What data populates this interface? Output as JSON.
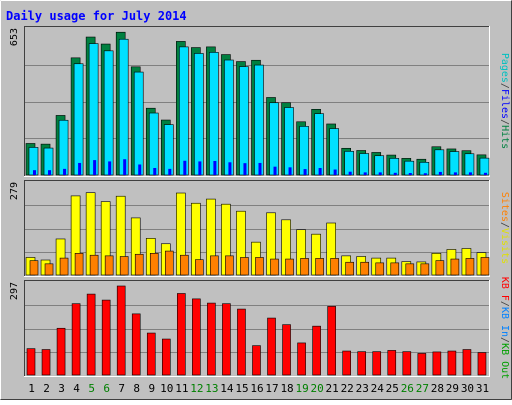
{
  "chart_data": {
    "type": "bar",
    "title": "Daily usage for July 2014",
    "categories": [
      "1",
      "2",
      "3",
      "4",
      "5",
      "6",
      "7",
      "8",
      "9",
      "10",
      "11",
      "12",
      "13",
      "14",
      "15",
      "16",
      "17",
      "18",
      "19",
      "20",
      "21",
      "22",
      "23",
      "24",
      "25",
      "26",
      "27",
      "28",
      "29",
      "30",
      "31"
    ],
    "weekend_days": [
      "5",
      "6",
      "12",
      "13",
      "19",
      "20",
      "26",
      "27"
    ],
    "panels": [
      {
        "name": "hits-files-pages",
        "ymax_label": "653",
        "ylim": [
          0,
          653
        ],
        "series": [
          {
            "name": "Hits",
            "color": "#008040",
            "values": [
              144,
              141,
              272,
              535,
              630,
              598,
              652,
              494,
              305,
              251,
              610,
              582,
              585,
              550,
              518,
              524,
              354,
              330,
              243,
              300,
              233,
              122,
              112,
              103,
              91,
              76,
              72,
              129,
              119,
              111,
              92
            ]
          },
          {
            "name": "Files",
            "color": "#00e0ff",
            "values": [
              126,
              123,
              250,
              508,
              600,
              567,
              620,
              470,
              283,
              230,
              585,
              555,
              560,
              525,
              495,
              502,
              330,
              308,
              222,
              280,
              212,
              108,
              98,
              88,
              76,
              63,
              58,
              115,
              107,
              97,
              77
            ]
          },
          {
            "name": "Pages",
            "color": "#0000ff",
            "values": [
              22,
              22,
              28,
              55,
              68,
              62,
              72,
              48,
              32,
              28,
              65,
              62,
              64,
              58,
              54,
              55,
              38,
              35,
              27,
              32,
              25,
              15,
              12,
              12,
              10,
              9,
              8,
              14,
              12,
              12,
              10
            ]
          }
        ]
      },
      {
        "name": "visits-sites",
        "ymax_label": "279",
        "ylim": [
          0,
          279
        ],
        "series": [
          {
            "name": "Visits",
            "color": "#ffff00",
            "values": [
              55,
              47,
              113,
              248,
              258,
              230,
              247,
              179,
              115,
              98,
              257,
              225,
              238,
              222,
              200,
              103,
              195,
              173,
              142,
              128,
              163,
              60,
              58,
              53,
              53,
              42,
              41,
              68,
              80,
              83,
              70
            ]
          },
          {
            "name": "Sites",
            "color": "#ff8000",
            "values": [
              45,
              35,
              53,
              68,
              62,
              60,
              58,
              65,
              68,
              75,
              62,
              48,
              60,
              60,
              55,
              55,
              50,
              50,
              52,
              52,
              52,
              40,
              40,
              38,
              38,
              35,
              35,
              45,
              50,
              52,
              55
            ]
          }
        ]
      },
      {
        "name": "kbytes",
        "ymax_label": "297",
        "ylim": [
          0,
          297
        ],
        "series": [
          {
            "name": "KBytes",
            "color": "#ff0000",
            "values": [
              88,
              85,
              156,
              238,
              270,
              250,
              297,
              204,
              140,
              120,
              272,
              254,
              240,
              238,
              220,
              98,
              190,
              168,
              107,
              163,
              229,
              80,
              78,
              78,
              82,
              78,
              72,
              77,
              80,
              85,
              75
            ]
          }
        ]
      }
    ],
    "legend_right": {
      "top": [
        {
          "text": "Pages",
          "color": "#00c0c0"
        },
        {
          "text": "/",
          "color": "#404040"
        },
        {
          "text": "Files",
          "color": "#0000ff"
        },
        {
          "text": "/",
          "color": "#404040"
        },
        {
          "text": "Hits",
          "color": "#008040"
        }
      ],
      "middle": [
        {
          "text": "Sites",
          "color": "#ff8000"
        },
        {
          "text": "/",
          "color": "#404040"
        },
        {
          "text": "Visits",
          "color": "#e0e000"
        }
      ],
      "bottom": [
        {
          "text": "KB F",
          "color": "#ff0000"
        },
        {
          "text": "/",
          "color": "#404040"
        },
        {
          "text": "KB In",
          "color": "#0080ff"
        },
        {
          "text": "/",
          "color": "#404040"
        },
        {
          "text": "KB Out",
          "color": "#00a000"
        }
      ]
    },
    "colors": {
      "background": "#c0c0c0",
      "title": "#0000ff",
      "plot_bg": "#c0c0c0",
      "grid": "#808080",
      "weekday_tick": "#000000",
      "weekend_tick": "#008000"
    }
  }
}
